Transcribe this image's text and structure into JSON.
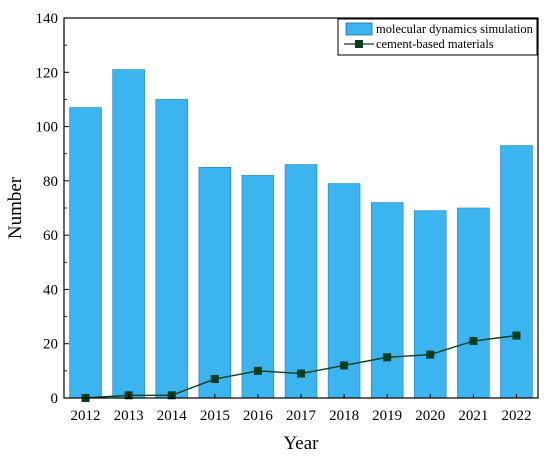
{
  "chart_data": {
    "type": "bar",
    "title": "",
    "xlabel": "Year",
    "ylabel": "Number",
    "categories": [
      "2012",
      "2013",
      "2014",
      "2015",
      "2016",
      "2017",
      "2018",
      "2019",
      "2020",
      "2021",
      "2022"
    ],
    "series": [
      {
        "name": "molecular dynamics simulation",
        "type": "bar",
        "color": "#3BB4F0",
        "values": [
          107,
          121,
          110,
          85,
          82,
          86,
          79,
          72,
          69,
          70,
          93
        ]
      },
      {
        "name": "cement-based materials",
        "type": "line",
        "marker": "square",
        "color": "#0b3d1f",
        "values": [
          0,
          1,
          1,
          7,
          10,
          9,
          12,
          15,
          16,
          21,
          23
        ]
      }
    ],
    "ylim": [
      0,
      140
    ],
    "yticks": [
      "0",
      "20",
      "40",
      "60",
      "80",
      "100",
      "120",
      "140"
    ],
    "grid": false,
    "legend_position": "top-right"
  }
}
